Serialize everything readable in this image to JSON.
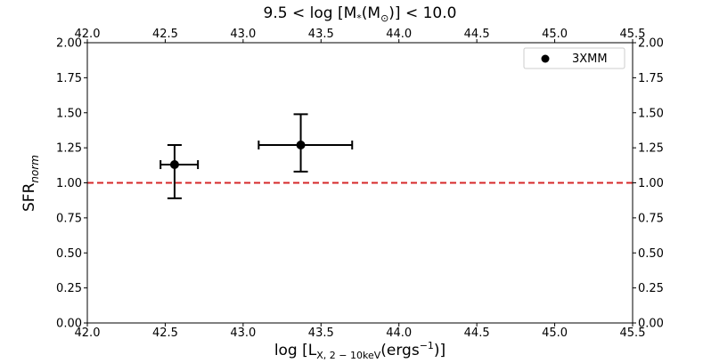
{
  "chart_data": {
    "type": "scatter",
    "title_prefix": "9.5 < log [M",
    "title_sub1": "*",
    "title_mid": "(M",
    "title_sub2": "⊙",
    "title_suffix": ")] < 10.0",
    "xlabel_prefix": "log [L",
    "xlabel_sub": "X, 2 − 10keV",
    "xlabel_mid": "(ergs",
    "xlabel_sup": "−1",
    "xlabel_suffix": ")]",
    "ylabel_main": "SFR",
    "ylabel_sub": "norm",
    "xlim": [
      42.0,
      45.5
    ],
    "ylim": [
      0.0,
      2.0
    ],
    "xticks": [
      "42.0",
      "42.5",
      "43.0",
      "43.5",
      "44.0",
      "44.5",
      "45.0",
      "45.5"
    ],
    "yticks": [
      "0.00",
      "0.25",
      "0.50",
      "0.75",
      "1.00",
      "1.25",
      "1.50",
      "1.75",
      "2.00"
    ],
    "reference_line": {
      "y": 1.0,
      "color": "#d62728",
      "style": "dashed"
    },
    "legend": {
      "position": "top-right"
    },
    "series": [
      {
        "name": "3XMM",
        "color": "#000000",
        "points": [
          {
            "x": 42.56,
            "y": 1.13,
            "xerr_low": 42.47,
            "xerr_high": 42.71,
            "yerr_low": 0.89,
            "yerr_high": 1.27
          },
          {
            "x": 43.37,
            "y": 1.27,
            "xerr_low": 43.1,
            "xerr_high": 43.7,
            "yerr_low": 1.08,
            "yerr_high": 1.49
          }
        ]
      }
    ]
  }
}
